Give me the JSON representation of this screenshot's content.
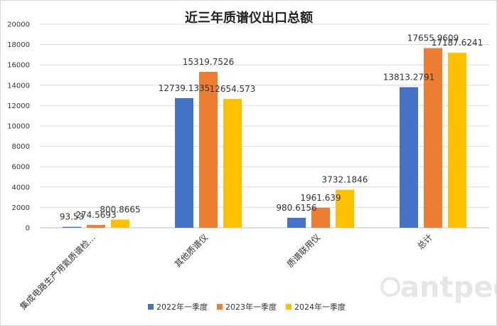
{
  "chart_data": {
    "type": "bar",
    "title": "近三年质谱仪出口总额",
    "categories": [
      "集成电路生产用氦质谱检…",
      "其他质谱仪",
      "质谱联用仪",
      "总计"
    ],
    "series": [
      {
        "name": "2022年一季度",
        "color": "#4472c4",
        "values": [
          93.53,
          12739.1335,
          980.6156,
          13813.2791
        ],
        "labels": [
          "93.53",
          "12739.1335",
          "980.6156",
          "13813.2791"
        ]
      },
      {
        "name": "2023年一季度",
        "color": "#ed7d31",
        "values": [
          274.5693,
          15319.7526,
          1961.639,
          17655.9609
        ],
        "labels": [
          "274.5693",
          "15319.7526",
          "1961.639",
          "17655.9609"
        ]
      },
      {
        "name": "2024年一季度",
        "color": "#ffc000",
        "values": [
          800.8665,
          12654.573,
          3732.1846,
          17187.6241
        ],
        "labels": [
          "800.8665",
          "12654.573",
          "3732.1846",
          "17187.6241"
        ]
      }
    ],
    "ylim": [
      0,
      20000
    ],
    "yticks": [
      "0",
      "2000",
      "4000",
      "6000",
      "8000",
      "10000",
      "12000",
      "14000",
      "16000",
      "18000",
      "20000"
    ],
    "legend_position": "bottom",
    "grid": true
  },
  "watermark": "antpedia"
}
